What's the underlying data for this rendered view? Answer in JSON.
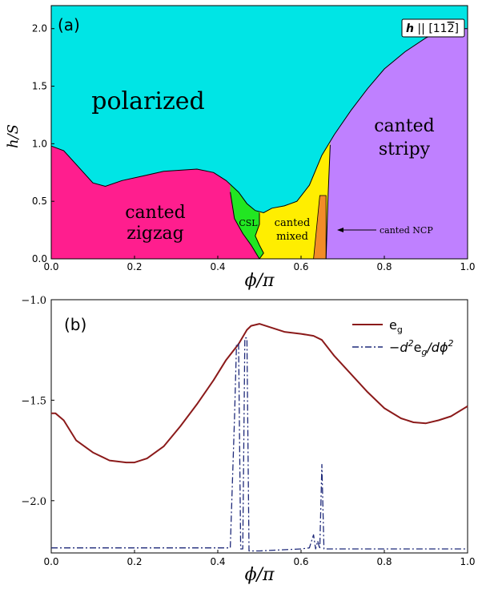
{
  "chart_data": [
    {
      "type": "area",
      "panel_label": "(a)",
      "field_label": "h || [11̅2̅]",
      "field_label_parts": {
        "h": "h",
        "sep": " || ",
        "dir": "[11",
        "dir_bar": "2",
        "dir_end": "]"
      },
      "xlabel": "ϕ/π",
      "ylabel": "h/S",
      "xlim": [
        0.0,
        1.0
      ],
      "ylim": [
        0.0,
        2.2
      ],
      "xticks": [
        "0.0",
        "0.2",
        "0.4",
        "0.6",
        "0.8",
        "1.0"
      ],
      "yticks": [
        "0.0",
        "0.5",
        "1.0",
        "1.5",
        "2.0"
      ],
      "phases": [
        {
          "name": "polarized",
          "label": "polarized",
          "color": "#00e5e5"
        },
        {
          "name": "canted zigzag",
          "label_lines": [
            "canted",
            "zigzag"
          ],
          "color": "#ff1e8e"
        },
        {
          "name": "CSL",
          "label": "CSL",
          "color": "#22e622"
        },
        {
          "name": "canted mixed",
          "label_lines": [
            "canted",
            "mixed"
          ],
          "color": "#ffee00"
        },
        {
          "name": "canted NCP",
          "label": "canted NCP",
          "color": "#f28c28"
        },
        {
          "name": "canted stripy",
          "label_lines": [
            "canted",
            "stripy"
          ],
          "color": "#bf80ff"
        }
      ],
      "annotation": "canted NCP",
      "boundaries": {
        "upper": {
          "x": [
            0.0,
            0.03,
            0.06,
            0.1,
            0.13,
            0.17,
            0.22,
            0.27,
            0.31,
            0.35,
            0.39,
            0.42,
            0.45,
            0.47,
            0.49,
            0.51,
            0.53,
            0.56,
            0.59,
            0.62,
            0.65,
            0.68,
            0.72,
            0.76,
            0.8,
            0.85,
            0.9,
            0.94,
            0.97,
            1.0
          ],
          "y": [
            0.98,
            0.94,
            0.82,
            0.66,
            0.63,
            0.68,
            0.72,
            0.76,
            0.77,
            0.78,
            0.75,
            0.68,
            0.58,
            0.48,
            0.42,
            0.4,
            0.44,
            0.46,
            0.5,
            0.64,
            0.9,
            1.08,
            1.29,
            1.48,
            1.65,
            1.8,
            1.92,
            1.98,
            2.0,
            2.0
          ]
        },
        "zigzag_csl": {
          "x": [
            0.43,
            0.44,
            0.46,
            0.48,
            0.5
          ],
          "y": [
            0.58,
            0.35,
            0.22,
            0.12,
            0.0
          ]
        },
        "csl_mixed": {
          "x": [
            0.5,
            0.5,
            0.49,
            0.5,
            0.51,
            0.5
          ],
          "y": [
            0.4,
            0.3,
            0.2,
            0.12,
            0.05,
            0.0
          ]
        },
        "ncp_region": {
          "x": [
            0.645,
            0.66,
            0.66,
            0.645,
            0.63
          ],
          "y": [
            0.55,
            0.55,
            0.0,
            0.0,
            0.0
          ]
        },
        "stripy_left": {
          "x": [
            0.66,
            0.665,
            0.67
          ],
          "y": [
            0.0,
            0.55,
            0.99
          ]
        }
      }
    },
    {
      "type": "line",
      "panel_label": "(b)",
      "xlabel": "ϕ/π",
      "xlim": [
        0.0,
        1.0
      ],
      "ylim": [
        -2.26,
        -1.0
      ],
      "xticks": [
        "0.0",
        "0.2",
        "0.4",
        "0.6",
        "0.8",
        "1.0"
      ],
      "yticks": [
        "−1.0",
        "−1.5",
        "−2.0"
      ],
      "ytick_values": [
        -1.0,
        -1.5,
        -2.0
      ],
      "legend_position": "top-right",
      "series": [
        {
          "name": "e_g",
          "legend": {
            "main": "e",
            "sub": "g"
          },
          "color": "#8b1a1a",
          "style": "solid",
          "x": [
            0.0,
            0.01,
            0.03,
            0.06,
            0.1,
            0.14,
            0.18,
            0.2,
            0.23,
            0.27,
            0.31,
            0.35,
            0.39,
            0.42,
            0.45,
            0.47,
            0.48,
            0.5,
            0.53,
            0.56,
            0.6,
            0.63,
            0.65,
            0.68,
            0.72,
            0.76,
            0.8,
            0.84,
            0.87,
            0.9,
            0.93,
            0.96,
            1.0
          ],
          "y": [
            -1.565,
            -1.565,
            -1.6,
            -1.7,
            -1.76,
            -1.8,
            -1.81,
            -1.81,
            -1.79,
            -1.73,
            -1.63,
            -1.52,
            -1.4,
            -1.3,
            -1.22,
            -1.15,
            -1.13,
            -1.12,
            -1.14,
            -1.16,
            -1.17,
            -1.18,
            -1.2,
            -1.28,
            -1.37,
            -1.46,
            -1.54,
            -1.59,
            -1.61,
            -1.615,
            -1.6,
            -1.58,
            -1.53
          ]
        },
        {
          "name": "-d^2 e_g/d phi^2",
          "legend": {
            "pre": "−d",
            "sup1": "2",
            "mid": "e",
            "sub": "g",
            "post": "/dϕ",
            "sup2": "2"
          },
          "color": "#1f2a7a",
          "style": "dashdot",
          "x": [
            0.0,
            0.1,
            0.2,
            0.3,
            0.4,
            0.43,
            0.44,
            0.445,
            0.45,
            0.455,
            0.46,
            0.465,
            0.47,
            0.475,
            0.48,
            0.485,
            0.5,
            0.55,
            0.6,
            0.62,
            0.63,
            0.635,
            0.64,
            0.645,
            0.65,
            0.655,
            0.66,
            0.7,
            0.8,
            0.9,
            1.0
          ],
          "y": [
            -2.235,
            -2.235,
            -2.235,
            -2.235,
            -2.235,
            -2.235,
            -1.6,
            -1.22,
            -1.22,
            -2.24,
            -2.24,
            -1.19,
            -1.19,
            -2.25,
            -2.25,
            -2.25,
            -2.25,
            -2.245,
            -2.24,
            -2.235,
            -2.17,
            -2.24,
            -2.2,
            -2.24,
            -1.82,
            -2.24,
            -2.24,
            -2.24,
            -2.24,
            -2.24,
            -2.24
          ]
        }
      ]
    }
  ]
}
